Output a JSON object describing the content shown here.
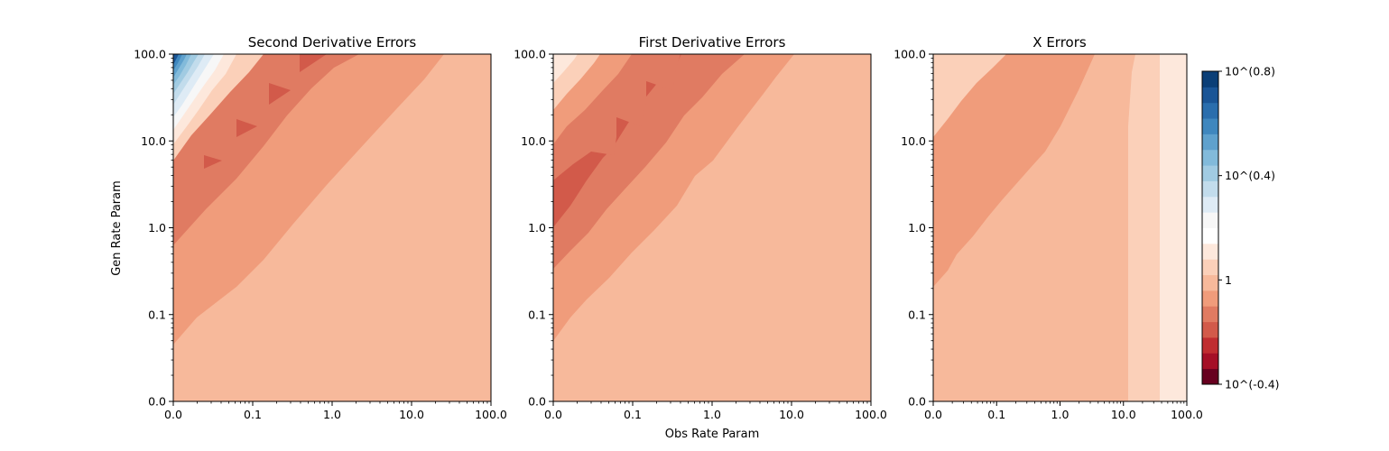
{
  "figure": {
    "xlabel": "Obs Rate Param",
    "ylabel": "Gen Rate Param"
  },
  "chart_data": [
    {
      "type": "heatmap",
      "title": "Second Derivative Errors",
      "x_ticks": [
        "0.0",
        "0.1",
        "1.0",
        "10.0",
        "100.0"
      ],
      "y_ticks": [
        "0.0",
        "0.1",
        "1.0",
        "10.0",
        "100.0"
      ],
      "xscale": "log",
      "yscale": "log",
      "region_bands": [
        {
          "color": "#f7b99b",
          "region": "lowest, bottom-right triangle"
        },
        {
          "color": "#f09c7b",
          "region": "boundary from (0.0, 0.05) to (100.0, 100.0)"
        },
        {
          "color": "#e07b62",
          "region": "boundary from (0.0, 0.6) to (2.0, 100.0)"
        },
        {
          "color": "#d25a4a",
          "region": "patches along (0.03, 6), (0.08, 15), (0.25, 40), (0.5, 100)"
        },
        {
          "color": "#fbd0b9",
          "region": "ridge near top-left"
        },
        {
          "color": "#f7f7f7",
          "region": "top-left"
        },
        {
          "color": "#6fa7d0",
          "region": "top-left corner"
        },
        {
          "color": "#124d8b",
          "region": "extreme top-left corner, max about 10^(0.8)"
        }
      ]
    },
    {
      "type": "heatmap",
      "title": "First Derivative Errors",
      "x_ticks": [
        "0.0",
        "0.1",
        "1.0",
        "10.0",
        "100.0"
      ],
      "y_ticks": [
        "0.0",
        "0.1",
        "1.0",
        "10.0",
        "100.0"
      ],
      "xscale": "log",
      "yscale": "log",
      "region_bands": [
        {
          "color": "#f7b99b",
          "region": "bottom-right"
        },
        {
          "color": "#f09c7b",
          "region": "boundary from (0.0, 0.05) to (10.0, 100.0)"
        },
        {
          "color": "#e07b62",
          "region": "boundary from (0.0, 0.35) to (2.0, 100.0)"
        },
        {
          "color": "#d25a4a",
          "region": "diagonal band from (0.0, 1.0) to (0.7, 100.0)"
        },
        {
          "color": "#fbd0b9",
          "region": "top-left"
        },
        {
          "color": "#fde8dc",
          "region": "top-left corner"
        }
      ]
    },
    {
      "type": "heatmap",
      "title": "X Errors",
      "x_ticks": [
        "0.0",
        "0.1",
        "1.0",
        "10.0",
        "100.0"
      ],
      "y_ticks": [
        "0.0",
        "0.1",
        "1.0",
        "10.0",
        "100.0"
      ],
      "xscale": "log",
      "yscale": "log",
      "region_bands": [
        {
          "color": "#f7b99b",
          "region": "bottom-left, obs less than about 12"
        },
        {
          "color": "#f09c7b",
          "region": "diagonal band from (0.0, 0.2) to (2.0, 100.0)"
        },
        {
          "color": "#fbd0b9",
          "region": "top-left corner, and obs 12 to 35"
        },
        {
          "color": "#fde8dc",
          "region": "right, obs greater than about 35"
        }
      ]
    }
  ],
  "colorbar": {
    "scale": "log",
    "range_log10": [
      -0.4,
      0.8
    ],
    "tick_labels": [
      "10^(0.8)",
      "10^(0.4)",
      "1",
      "10^(-0.4)"
    ],
    "tick_values_log10": [
      0.8,
      0.4,
      0.0,
      -0.4
    ],
    "colors_bottom_to_top": [
      "#67001f",
      "#a50f26",
      "#c02d30",
      "#d25a4a",
      "#e07b62",
      "#f09c7b",
      "#f7b99b",
      "#fbd0b9",
      "#fde8dc",
      "#ffffff",
      "#f7f7f7",
      "#deebf5",
      "#c2dcec",
      "#a1cbe2",
      "#82bada",
      "#5fa1cd",
      "#3f87be",
      "#2a6ead",
      "#1a5596",
      "#0b3f77"
    ]
  }
}
